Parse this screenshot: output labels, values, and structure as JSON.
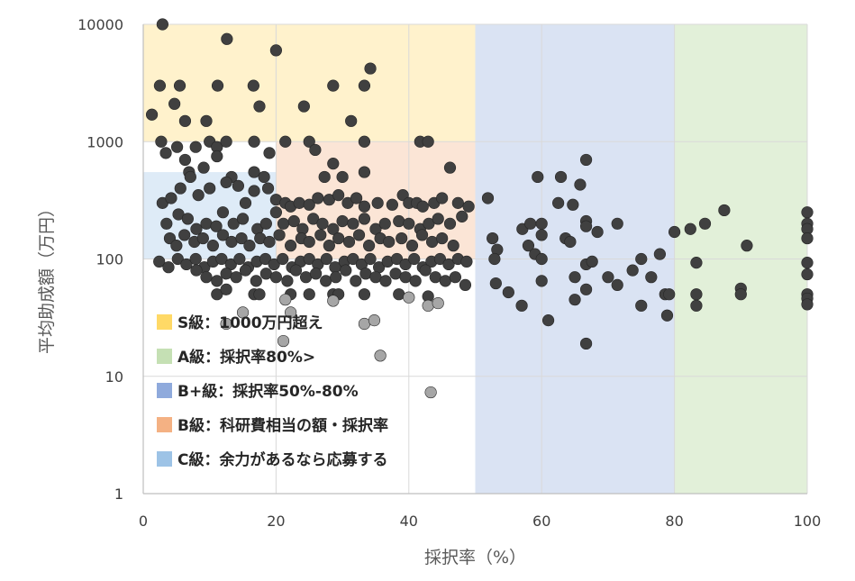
{
  "chart_data": {
    "type": "scatter",
    "xlabel": "採択率（%）",
    "ylabel": "平均助成額（万円）",
    "x_range": [
      0,
      100
    ],
    "y_range": [
      1,
      10000
    ],
    "y_scale": "log",
    "x_ticks": [
      "0",
      "20",
      "40",
      "60",
      "80",
      "100"
    ],
    "y_ticks": [
      "1",
      "10",
      "100",
      "1000",
      "10000"
    ],
    "grid": true,
    "regions": [
      {
        "name": "S",
        "x": [
          0,
          50
        ],
        "y": [
          1000,
          10000
        ],
        "color": "#FFF2CC"
      },
      {
        "name": "B",
        "x": [
          20,
          50
        ],
        "y": [
          100,
          1000
        ],
        "color": "#FBE5D6"
      },
      {
        "name": "C",
        "x": [
          0,
          20
        ],
        "y": [
          100,
          550
        ],
        "color": "#DEEBF7"
      },
      {
        "name": "B+",
        "x": [
          50,
          80
        ],
        "y": [
          1,
          10000
        ],
        "color": "#DAE3F3"
      },
      {
        "name": "A",
        "x": [
          80,
          100
        ],
        "y": [
          1,
          10000
        ],
        "color": "#E2F0D9"
      }
    ],
    "legend": [
      {
        "label": "S級：1000万円超え",
        "color": "#FFD966"
      },
      {
        "label": "A級：採択率80%>",
        "color": "#C5E0B4"
      },
      {
        "label": "B+級：採択率50%-80%",
        "color": "#8FAADC"
      },
      {
        "label": "B級：科研費相当の額・採択率",
        "color": "#F4B183"
      },
      {
        "label": "C級：余力があるなら応募する",
        "color": "#9DC3E6"
      }
    ],
    "series": [
      {
        "color": "#404040",
        "points": [
          [
            2.9,
            10000
          ],
          [
            12.6,
            7500
          ],
          [
            20,
            6000
          ],
          [
            34.2,
            4200
          ],
          [
            2.5,
            3000
          ],
          [
            5.5,
            3000
          ],
          [
            11.2,
            3000
          ],
          [
            16.6,
            3000
          ],
          [
            28.6,
            3000
          ],
          [
            33.3,
            3000
          ],
          [
            4.7,
            2100
          ],
          [
            17.5,
            2000
          ],
          [
            24.2,
            2000
          ],
          [
            1.3,
            1700
          ],
          [
            6.3,
            1500
          ],
          [
            9.5,
            1500
          ],
          [
            31.3,
            1500
          ],
          [
            2.7,
            1000
          ],
          [
            5.1,
            900
          ],
          [
            7.9,
            900
          ],
          [
            10,
            1000
          ],
          [
            11.1,
            900
          ],
          [
            12.5,
            1000
          ],
          [
            16.7,
            1000
          ],
          [
            21.4,
            1000
          ],
          [
            25,
            1000
          ],
          [
            33.3,
            1000
          ],
          [
            41.7,
            1000
          ],
          [
            42.9,
            1000
          ],
          [
            3.4,
            800
          ],
          [
            6.3,
            700
          ],
          [
            9.1,
            600
          ],
          [
            11.1,
            750
          ],
          [
            19,
            800
          ],
          [
            25.9,
            850
          ],
          [
            28.6,
            650
          ],
          [
            6.9,
            550
          ],
          [
            13.3,
            500
          ],
          [
            16.7,
            550
          ],
          [
            18.2,
            500
          ],
          [
            27.3,
            500
          ],
          [
            30,
            500
          ],
          [
            33.3,
            550
          ],
          [
            46.2,
            600
          ],
          [
            2.9,
            300
          ],
          [
            4.2,
            330
          ],
          [
            5.6,
            400
          ],
          [
            7.1,
            500
          ],
          [
            8.3,
            350
          ],
          [
            10,
            400
          ],
          [
            12.5,
            450
          ],
          [
            14.3,
            420
          ],
          [
            15.4,
            300
          ],
          [
            16.7,
            380
          ],
          [
            18.8,
            400
          ],
          [
            20,
            320
          ],
          [
            21.4,
            300
          ],
          [
            22.2,
            280
          ],
          [
            23.5,
            300
          ],
          [
            25,
            290
          ],
          [
            26.3,
            330
          ],
          [
            28,
            320
          ],
          [
            29.4,
            350
          ],
          [
            30.8,
            300
          ],
          [
            32.1,
            330
          ],
          [
            33.3,
            280
          ],
          [
            35.3,
            300
          ],
          [
            37.5,
            290
          ],
          [
            39.1,
            350
          ],
          [
            40,
            300
          ],
          [
            41.2,
            300
          ],
          [
            42.1,
            280
          ],
          [
            43.8,
            300
          ],
          [
            45,
            330
          ],
          [
            47.4,
            300
          ],
          [
            49,
            280
          ],
          [
            3.5,
            200
          ],
          [
            5.3,
            240
          ],
          [
            6.7,
            220
          ],
          [
            8,
            180
          ],
          [
            9.5,
            200
          ],
          [
            11,
            190
          ],
          [
            12,
            250
          ],
          [
            13.6,
            200
          ],
          [
            15,
            220
          ],
          [
            17.2,
            180
          ],
          [
            18.5,
            200
          ],
          [
            20,
            250
          ],
          [
            21.1,
            200
          ],
          [
            22.7,
            210
          ],
          [
            24,
            180
          ],
          [
            25.6,
            220
          ],
          [
            27,
            200
          ],
          [
            28.6,
            180
          ],
          [
            30,
            210
          ],
          [
            31.6,
            200
          ],
          [
            33.3,
            220
          ],
          [
            35,
            180
          ],
          [
            36.4,
            200
          ],
          [
            38.5,
            210
          ],
          [
            40,
            200
          ],
          [
            41.7,
            180
          ],
          [
            43,
            200
          ],
          [
            44.4,
            220
          ],
          [
            46.2,
            200
          ],
          [
            48,
            230
          ],
          [
            4,
            150
          ],
          [
            5,
            130
          ],
          [
            6.2,
            160
          ],
          [
            7.7,
            140
          ],
          [
            9,
            150
          ],
          [
            10.5,
            130
          ],
          [
            12,
            160
          ],
          [
            13.3,
            140
          ],
          [
            14.8,
            150
          ],
          [
            16,
            130
          ],
          [
            17.6,
            150
          ],
          [
            19,
            140
          ],
          [
            20.5,
            160
          ],
          [
            22.2,
            130
          ],
          [
            23.8,
            150
          ],
          [
            25,
            140
          ],
          [
            26.7,
            160
          ],
          [
            28,
            130
          ],
          [
            29.4,
            150
          ],
          [
            31,
            140
          ],
          [
            32.5,
            160
          ],
          [
            34,
            130
          ],
          [
            35.7,
            150
          ],
          [
            37,
            140
          ],
          [
            38.9,
            150
          ],
          [
            40.5,
            130
          ],
          [
            42,
            160
          ],
          [
            43.5,
            140
          ],
          [
            45,
            150
          ],
          [
            46.7,
            130
          ],
          [
            2.4,
            95
          ],
          [
            3.8,
            85
          ],
          [
            5.2,
            100
          ],
          [
            6.5,
            90
          ],
          [
            7.9,
            100
          ],
          [
            9.2,
            85
          ],
          [
            10.5,
            95
          ],
          [
            11.8,
            100
          ],
          [
            13.2,
            90
          ],
          [
            14.5,
            100
          ],
          [
            15.8,
            85
          ],
          [
            17.1,
            95
          ],
          [
            18.4,
            100
          ],
          [
            19.7,
            90
          ],
          [
            21,
            100
          ],
          [
            22.4,
            85
          ],
          [
            23.7,
            95
          ],
          [
            25,
            100
          ],
          [
            26.3,
            90
          ],
          [
            27.6,
            100
          ],
          [
            28.9,
            85
          ],
          [
            30.3,
            95
          ],
          [
            31.6,
            100
          ],
          [
            32.9,
            90
          ],
          [
            34.2,
            100
          ],
          [
            35.5,
            85
          ],
          [
            36.8,
            95
          ],
          [
            38.2,
            100
          ],
          [
            39.5,
            90
          ],
          [
            40.8,
            100
          ],
          [
            42.1,
            85
          ],
          [
            43.4,
            95
          ],
          [
            44.7,
            100
          ],
          [
            46,
            90
          ],
          [
            47.4,
            100
          ],
          [
            48.7,
            95
          ],
          [
            8,
            80
          ],
          [
            9.5,
            70
          ],
          [
            11.1,
            65
          ],
          [
            12.5,
            75
          ],
          [
            14,
            70
          ],
          [
            15.4,
            80
          ],
          [
            17,
            65
          ],
          [
            18.5,
            75
          ],
          [
            20,
            70
          ],
          [
            21.7,
            65
          ],
          [
            23,
            80
          ],
          [
            24.5,
            70
          ],
          [
            26,
            75
          ],
          [
            27.5,
            65
          ],
          [
            29,
            70
          ],
          [
            30.5,
            80
          ],
          [
            32,
            65
          ],
          [
            33.5,
            75
          ],
          [
            35,
            70
          ],
          [
            36.5,
            65
          ],
          [
            38,
            75
          ],
          [
            39.5,
            70
          ],
          [
            41,
            65
          ],
          [
            42.5,
            80
          ],
          [
            44,
            70
          ],
          [
            45.5,
            65
          ],
          [
            47,
            70
          ],
          [
            48.5,
            60
          ],
          [
            11.1,
            50
          ],
          [
            12.5,
            55
          ],
          [
            16.7,
            50
          ],
          [
            17.5,
            50
          ],
          [
            22.2,
            50
          ],
          [
            25,
            50
          ],
          [
            28.6,
            50
          ],
          [
            29.4,
            50
          ],
          [
            33.3,
            50
          ],
          [
            38.5,
            50
          ],
          [
            42.9,
            48
          ],
          [
            51.9,
            330
          ],
          [
            52.6,
            150
          ],
          [
            53.3,
            120
          ],
          [
            52.9,
            100
          ],
          [
            53.1,
            62
          ],
          [
            55,
            52
          ],
          [
            57,
            40
          ],
          [
            57.1,
            180
          ],
          [
            58,
            130
          ],
          [
            58.3,
            200
          ],
          [
            59,
            110
          ],
          [
            59.4,
            500
          ],
          [
            60,
            200
          ],
          [
            60,
            160
          ],
          [
            60,
            100
          ],
          [
            60,
            65
          ],
          [
            61,
            30
          ],
          [
            62.5,
            300
          ],
          [
            62.9,
            500
          ],
          [
            63.6,
            150
          ],
          [
            64.3,
            140
          ],
          [
            64.7,
            290
          ],
          [
            65,
            70
          ],
          [
            65,
            45
          ],
          [
            65.8,
            430
          ],
          [
            66.7,
            700
          ],
          [
            66.7,
            210
          ],
          [
            66.7,
            190
          ],
          [
            66.7,
            90
          ],
          [
            66.7,
            55
          ],
          [
            66.7,
            19
          ],
          [
            67.6,
            95
          ],
          [
            68.4,
            170
          ],
          [
            70,
            70
          ],
          [
            71.4,
            200
          ],
          [
            71.4,
            60
          ],
          [
            73.7,
            80
          ],
          [
            75,
            100
          ],
          [
            75,
            40
          ],
          [
            76.5,
            70
          ],
          [
            77.8,
            110
          ],
          [
            78.6,
            50
          ],
          [
            78.9,
            33
          ],
          [
            79.2,
            50
          ],
          [
            80,
            170
          ],
          [
            82.4,
            180
          ],
          [
            83.3,
            93
          ],
          [
            83.3,
            50
          ],
          [
            83.3,
            40
          ],
          [
            84.6,
            200
          ],
          [
            87.5,
            260
          ],
          [
            90,
            56
          ],
          [
            90,
            50
          ],
          [
            90.9,
            130
          ],
          [
            100,
            250
          ],
          [
            100,
            200
          ],
          [
            100,
            180
          ],
          [
            100,
            150
          ],
          [
            100,
            93
          ],
          [
            100,
            74
          ],
          [
            100,
            50
          ],
          [
            100,
            46
          ],
          [
            100,
            41
          ]
        ]
      },
      {
        "color": "#A6A6A6",
        "points": [
          [
            12.5,
            28
          ],
          [
            15,
            35
          ],
          [
            21.4,
            45
          ],
          [
            21.1,
            20
          ],
          [
            22.2,
            35
          ],
          [
            28.6,
            44
          ],
          [
            33.3,
            28
          ],
          [
            34.8,
            30
          ],
          [
            35.7,
            15
          ],
          [
            40,
            47
          ],
          [
            42.9,
            40
          ],
          [
            44.4,
            42
          ],
          [
            43.3,
            7.3
          ]
        ]
      }
    ]
  }
}
